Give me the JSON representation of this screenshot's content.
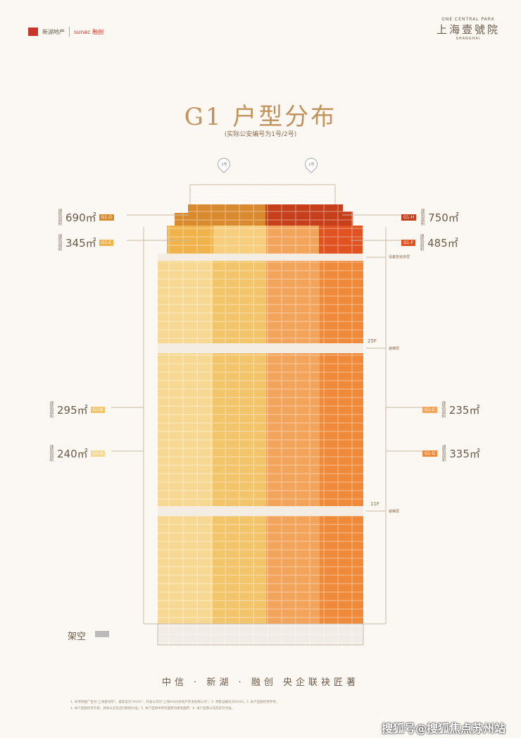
{
  "brand": {
    "left_logo_1": "新湖地产",
    "left_logo_2": "sunac 融创",
    "right_en": "ONE CENTRAL PARK",
    "right_cn": "上海壹號院",
    "right_sub": "SHANGHAI"
  },
  "title": "G1 户型分布",
  "subtitle": "(实际公安编号为1号/2号)",
  "pins": [
    "2号",
    "1号"
  ],
  "units_left": [
    {
      "area": "690㎡",
      "tag": "G1-G",
      "color": "#d98a2e"
    },
    {
      "area": "345㎡",
      "tag": "G1-E",
      "color": "#f0b24a"
    },
    {
      "area": "295㎡",
      "tag": "G1-B",
      "color": "#f2c56a"
    },
    {
      "area": "240㎡",
      "tag": "G1-A",
      "color": "#f7d892"
    }
  ],
  "units_right": [
    {
      "area": "750㎡",
      "tag": "G1-H",
      "color": "#c5401a"
    },
    {
      "area": "485㎡",
      "tag": "G1-F",
      "color": "#e0521f"
    },
    {
      "area": "235㎡",
      "tag": "G1-C",
      "color": "#f2a45a"
    },
    {
      "area": "335㎡",
      "tag": "G1-D",
      "color": "#ee8a3a"
    }
  ],
  "floors": {
    "equip": "设备管道夹层",
    "f25": "25F",
    "f11": "11F",
    "refuge": "避难层"
  },
  "ground": "架空",
  "footer": "中信 · 新湖 · 融创   央企联袂匠著",
  "disclaimer_1": "1. 本项目推广名为\"上海壹号院\"，备案名为\"XXXX\"；开发公司为\"上海XXXX房地产开发有限公司\"；2. 预售证编号为XXXX；3. 本户型图仅供参考；",
  "disclaimer_2": "4. 本户型图仅作示意，具体以买卖合同附图为准；5. 本户型图中所示面积为建筑面积；6. 本户型图以实际交付为准。",
  "watermark": "搜狐号@搜狐焦点苏州站"
}
